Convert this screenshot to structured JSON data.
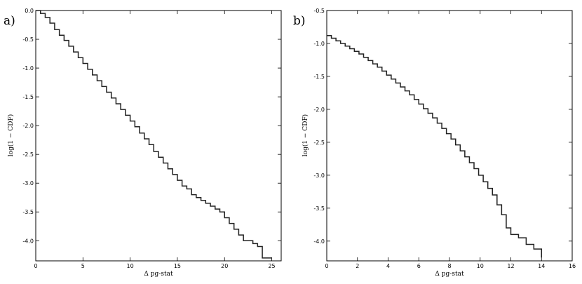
{
  "chart_data": [
    {
      "type": "line",
      "panel_label": "a)",
      "xlabel": "Δ pg-stat",
      "ylabel": "log(1 − CDF)",
      "xlim": [
        0,
        26
      ],
      "ylim": [
        -4.35,
        0
      ],
      "xticks": [
        "0",
        "5",
        "10",
        "15",
        "20",
        "25"
      ],
      "xtick_values": [
        0,
        5,
        10,
        15,
        20,
        25
      ],
      "yticks": [
        "0.0",
        "-0.5",
        "-1.0",
        "-1.5",
        "-2.0",
        "-2.5",
        "-3.0",
        "-3.5",
        "-4.0"
      ],
      "ytick_values": [
        0,
        -0.5,
        -1.0,
        -1.5,
        -2.0,
        -2.5,
        -3.0,
        -3.5,
        -4.0
      ],
      "grid": false,
      "series": [
        {
          "style": "step",
          "x": [
            0,
            0.5,
            1,
            1.5,
            2,
            2.5,
            3,
            3.5,
            4,
            4.5,
            5,
            5.5,
            6,
            6.5,
            7,
            7.5,
            8,
            8.5,
            9,
            9.5,
            10,
            10.5,
            11,
            11.5,
            12,
            12.5,
            13,
            13.5,
            14,
            14.5,
            15,
            15.5,
            16,
            16.5,
            17,
            17.5,
            18,
            18.5,
            19,
            19.5,
            20,
            20.5,
            21,
            21.5,
            22,
            23,
            23.5,
            24,
            25
          ],
          "y": [
            0,
            -0.05,
            -0.12,
            -0.22,
            -0.33,
            -0.43,
            -0.52,
            -0.62,
            -0.72,
            -0.82,
            -0.92,
            -1.02,
            -1.12,
            -1.22,
            -1.32,
            -1.42,
            -1.52,
            -1.62,
            -1.72,
            -1.82,
            -1.92,
            -2.02,
            -2.13,
            -2.23,
            -2.33,
            -2.45,
            -2.55,
            -2.65,
            -2.75,
            -2.85,
            -2.95,
            -3.05,
            -3.1,
            -3.2,
            -3.25,
            -3.3,
            -3.35,
            -3.4,
            -3.45,
            -3.5,
            -3.6,
            -3.7,
            -3.8,
            -3.9,
            -4.0,
            -4.05,
            -4.1,
            -4.3,
            -4.3
          ]
        }
      ]
    },
    {
      "type": "line",
      "panel_label": "b)",
      "xlabel": "Δ pg-stat",
      "ylabel": "log(1 − CDF)",
      "xlim": [
        0,
        16
      ],
      "ylim": [
        -4.3,
        -0.5
      ],
      "xticks": [
        "0",
        "2",
        "4",
        "6",
        "8",
        "10",
        "12",
        "14",
        "16"
      ],
      "xtick_values": [
        0,
        2,
        4,
        6,
        8,
        10,
        12,
        14,
        16
      ],
      "yticks": [
        "-0.5",
        "-1.0",
        "-1.5",
        "-2.0",
        "-2.5",
        "-3.0",
        "-3.5",
        "-4.0"
      ],
      "ytick_values": [
        -0.5,
        -1.0,
        -1.5,
        -2.0,
        -2.5,
        -3.0,
        -3.5,
        -4.0
      ],
      "grid": false,
      "series": [
        {
          "style": "step",
          "x": [
            0,
            0.3,
            0.6,
            0.9,
            1.2,
            1.5,
            1.8,
            2.1,
            2.4,
            2.7,
            3.0,
            3.3,
            3.6,
            3.9,
            4.2,
            4.5,
            4.8,
            5.1,
            5.4,
            5.7,
            6.0,
            6.3,
            6.6,
            6.9,
            7.2,
            7.5,
            7.8,
            8.1,
            8.4,
            8.7,
            9.0,
            9.3,
            9.6,
            9.9,
            10.2,
            10.5,
            10.8,
            11.1,
            11.4,
            11.7,
            12.0,
            12.5,
            13.0,
            13.5,
            14.0
          ],
          "y": [
            -0.88,
            -0.92,
            -0.96,
            -1.0,
            -1.04,
            -1.08,
            -1.12,
            -1.16,
            -1.21,
            -1.26,
            -1.31,
            -1.36,
            -1.42,
            -1.48,
            -1.54,
            -1.6,
            -1.66,
            -1.72,
            -1.78,
            -1.85,
            -1.92,
            -1.99,
            -2.06,
            -2.13,
            -2.21,
            -2.29,
            -2.37,
            -2.45,
            -2.54,
            -2.63,
            -2.72,
            -2.81,
            -2.9,
            -3.0,
            -3.1,
            -3.2,
            -3.3,
            -3.45,
            -3.6,
            -3.8,
            -3.9,
            -3.95,
            -4.05,
            -4.12,
            -4.25
          ]
        }
      ]
    }
  ]
}
